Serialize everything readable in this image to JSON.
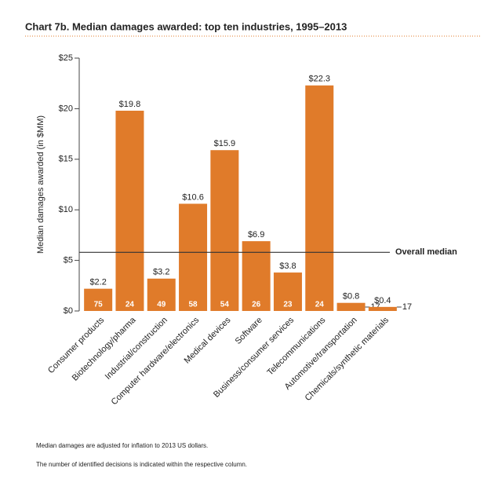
{
  "chart_data": {
    "type": "bar",
    "title": "Chart 7b. Median damages awarded: top ten industries, 1995–2013",
    "ylabel": "Median damages awarded (in $MM)",
    "categories": [
      "Consumer products",
      "Biotechnology/pharma",
      "Industrial/construction",
      "Computer hardware/electronics",
      "Medical devices",
      "Software",
      "Business/consumer services",
      "Telecommunications",
      "Automotive/transportation",
      "Chemicals/synthetic materials"
    ],
    "values": [
      2.2,
      19.8,
      3.2,
      10.6,
      15.9,
      6.9,
      3.8,
      22.3,
      0.8,
      0.4
    ],
    "value_labels": [
      "$2.2",
      "$19.8",
      "$3.2",
      "$10.6",
      "$15.9",
      "$6.9",
      "$3.8",
      "$22.3",
      "$0.8",
      "$0.4"
    ],
    "decision_counts": [
      75,
      24,
      49,
      58,
      54,
      26,
      23,
      24,
      17,
      17
    ],
    "color": "#e07b2a",
    "ylim": [
      0,
      25
    ],
    "yticks": [
      {
        "value": 0,
        "label": "$0"
      },
      {
        "value": 5,
        "label": "$5"
      },
      {
        "value": 10,
        "label": "$10"
      },
      {
        "value": 15,
        "label": "$15"
      },
      {
        "value": 20,
        "label": "$20"
      },
      {
        "value": 25,
        "label": "$25"
      }
    ],
    "reference_line": {
      "value": 5.8,
      "label": "Overall median"
    },
    "notes": [
      "Median damages are adjusted for inflation to 2013 US dollars.",
      "The number of identified decisions is indicated within the respective column."
    ]
  }
}
